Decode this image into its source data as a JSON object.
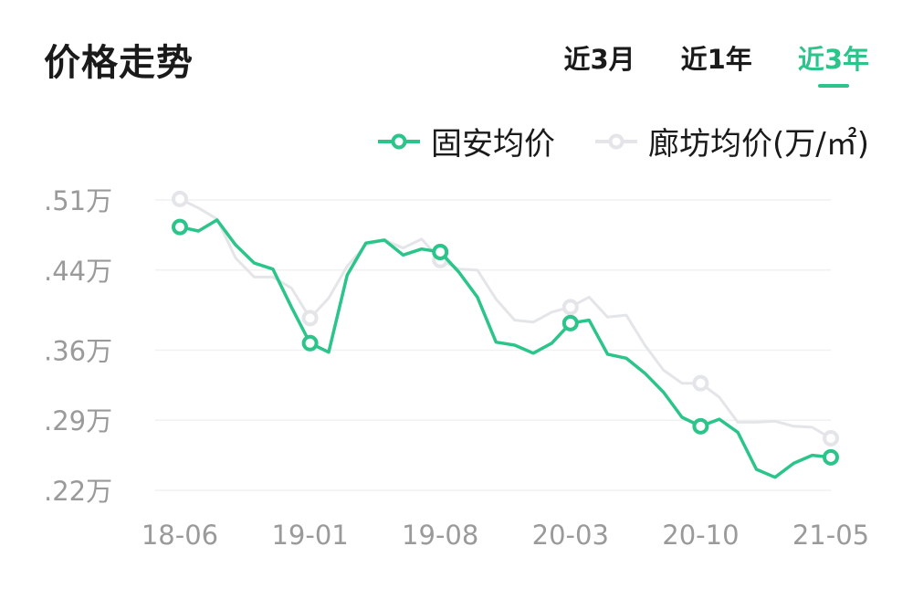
{
  "header": {
    "title": "价格走势",
    "tabs": [
      {
        "label": "近3月",
        "active": false
      },
      {
        "label": "近1年",
        "active": false
      },
      {
        "label": "近3年",
        "active": true
      }
    ]
  },
  "colors": {
    "accent": "#2bc48a",
    "secondary": "#e3e5e8",
    "axis_text": "#9a9a9a",
    "grid": "#f1f1f1"
  },
  "chart_data": {
    "type": "line",
    "y_ticks": [
      ".51万",
      ".44万",
      ".36万",
      ".29万",
      ".22万"
    ],
    "y_tick_values": [
      0.51,
      0.44,
      0.36,
      0.29,
      0.22
    ],
    "ylim": [
      0.22,
      0.51
    ],
    "x_tick_labels": [
      "18-06",
      "19-01",
      "19-08",
      "20-03",
      "20-10",
      "21-05"
    ],
    "x": [
      "18-06",
      "18-07",
      "18-08",
      "18-09",
      "18-10",
      "18-11",
      "18-12",
      "19-01",
      "19-02",
      "19-03",
      "19-04",
      "19-05",
      "19-06",
      "19-07",
      "19-08",
      "19-09",
      "19-10",
      "19-11",
      "19-12",
      "20-01",
      "20-02",
      "20-03",
      "20-04",
      "20-05",
      "20-06",
      "20-07",
      "20-08",
      "20-09",
      "20-10",
      "20-11",
      "20-12",
      "21-01",
      "21-02",
      "21-03",
      "21-04",
      "21-05"
    ],
    "series": [
      {
        "name": "固安均价",
        "color": "#2bc48a",
        "values": [
          0.483,
          0.479,
          0.49,
          0.465,
          0.447,
          0.441,
          0.403,
          0.367,
          0.358,
          0.435,
          0.467,
          0.47,
          0.455,
          0.461,
          0.458,
          0.438,
          0.413,
          0.368,
          0.365,
          0.357,
          0.367,
          0.387,
          0.39,
          0.356,
          0.352,
          0.337,
          0.318,
          0.293,
          0.284,
          0.291,
          0.278,
          0.241,
          0.233,
          0.247,
          0.255,
          0.253
        ],
        "markers_at": [
          0,
          7,
          14,
          21,
          28,
          35
        ]
      },
      {
        "name": "廊坊均价(万/㎡)",
        "color": "#e3e5e8",
        "values": [
          0.511,
          0.502,
          0.491,
          0.452,
          0.433,
          0.433,
          0.422,
          0.392,
          0.412,
          0.444,
          0.465,
          0.47,
          0.462,
          0.471,
          0.45,
          0.441,
          0.44,
          0.411,
          0.39,
          0.388,
          0.398,
          0.403,
          0.413,
          0.393,
          0.395,
          0.365,
          0.34,
          0.327,
          0.327,
          0.313,
          0.288,
          0.288,
          0.289,
          0.284,
          0.283,
          0.272
        ],
        "markers_at": [
          0,
          7,
          14,
          21,
          28,
          35
        ]
      }
    ],
    "grid": true,
    "legend": "top-right"
  }
}
